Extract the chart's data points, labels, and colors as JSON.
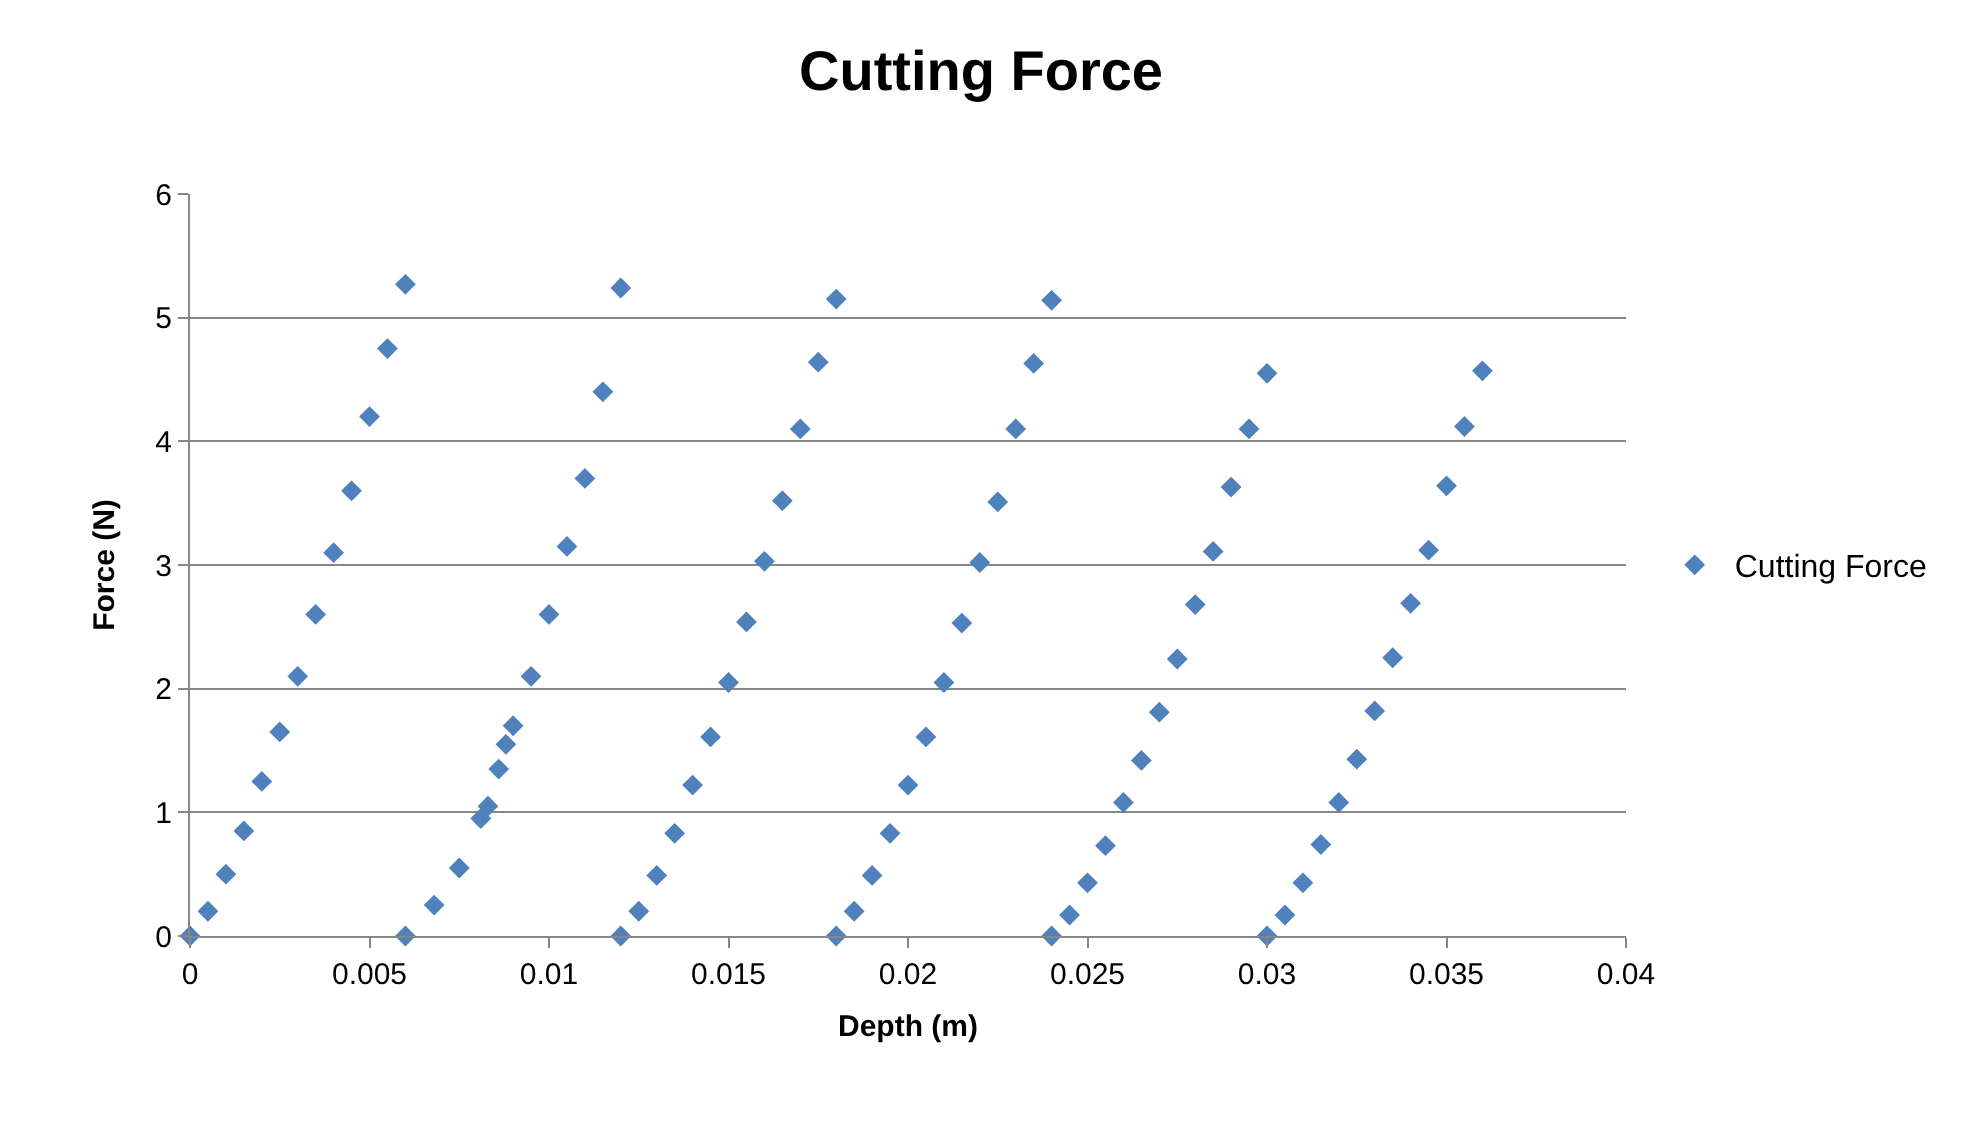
{
  "chart_data": {
    "type": "scatter",
    "title": "Cutting Force",
    "xlabel": "Depth (m)",
    "ylabel": "Force (N)",
    "xlim": [
      0,
      0.04
    ],
    "xticks": [
      0,
      0.005,
      0.01,
      0.015,
      0.02,
      0.025,
      0.03,
      0.035,
      0.04
    ],
    "ylim": [
      0,
      6
    ],
    "yticks": [
      0,
      1,
      2,
      3,
      4,
      5,
      6
    ],
    "grid": "y",
    "legend": "right",
    "marker": "diamond",
    "series": [
      {
        "name": "Cutting Force",
        "color": "#4f81bd",
        "x": [
          0,
          0.0005,
          0.001,
          0.0015,
          0.002,
          0.0025,
          0.003,
          0.0035,
          0.004,
          0.0045,
          0.005,
          0.0055,
          0.006,
          0.006,
          0.0068,
          0.0075,
          0.0081,
          0.0083,
          0.0086,
          0.0088,
          0.009,
          0.0095,
          0.01,
          0.0105,
          0.011,
          0.0115,
          0.012,
          0.012,
          0.0125,
          0.013,
          0.0135,
          0.014,
          0.0145,
          0.015,
          0.0155,
          0.016,
          0.0165,
          0.017,
          0.0175,
          0.018,
          0.018,
          0.0185,
          0.019,
          0.0195,
          0.02,
          0.0205,
          0.021,
          0.0215,
          0.022,
          0.0225,
          0.023,
          0.0235,
          0.024,
          0.024,
          0.0245,
          0.025,
          0.0255,
          0.026,
          0.0265,
          0.027,
          0.0275,
          0.028,
          0.0285,
          0.029,
          0.0295,
          0.03,
          0.03,
          0.0305,
          0.031,
          0.0315,
          0.032,
          0.0325,
          0.033,
          0.0335,
          0.034,
          0.0345,
          0.035,
          0.0355,
          0.036
        ],
        "values": [
          0,
          0.2,
          0.5,
          0.85,
          1.25,
          1.65,
          2.1,
          2.6,
          3.1,
          3.6,
          4.2,
          4.75,
          5.27,
          0,
          0.25,
          0.55,
          0.95,
          1.05,
          1.35,
          1.55,
          1.7,
          2.1,
          2.6,
          3.15,
          3.7,
          4.4,
          5.24,
          0,
          0.2,
          0.49,
          0.83,
          1.22,
          1.61,
          2.05,
          2.54,
          3.03,
          3.52,
          4.1,
          4.64,
          5.15,
          0,
          0.2,
          0.49,
          0.83,
          1.22,
          1.61,
          2.05,
          2.53,
          3.02,
          3.51,
          4.1,
          4.63,
          5.14,
          0,
          0.17,
          0.43,
          0.73,
          1.08,
          1.42,
          1.81,
          2.24,
          2.68,
          3.11,
          3.63,
          4.1,
          4.55,
          0,
          0.17,
          0.43,
          0.74,
          1.08,
          1.43,
          1.82,
          2.25,
          2.69,
          3.12,
          3.64,
          4.12,
          4.57
        ]
      }
    ]
  }
}
